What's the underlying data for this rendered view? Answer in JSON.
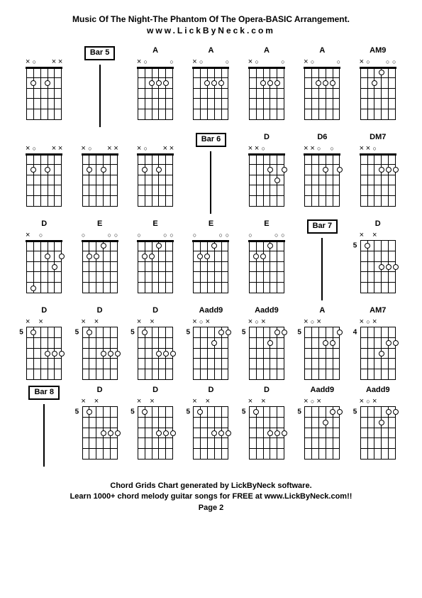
{
  "title": "Music Of The Night-The Phantom Of The Opera-BASIC Arrangement.",
  "website": "www.LickByNeck.com",
  "footer1": "Chord Grids Chart generated by LickByNeck software.",
  "footer2": "Learn 1000+ chord melody guitar songs for FREE at www.LickByNeck.com!!",
  "page": "Page 2",
  "diagram": {
    "width": 50,
    "height": 75,
    "num_strings": 6,
    "num_frets": 5,
    "dot_color": "#ffffff",
    "dot_border": "#000000",
    "line_color": "#000000"
  },
  "cells": [
    {
      "type": "chord",
      "label": "",
      "markers": [
        "x",
        "o",
        "",
        "",
        "x",
        "x"
      ],
      "dots": [
        [
          2,
          2
        ],
        [
          4,
          2
        ]
      ],
      "nut": true
    },
    {
      "type": "bar",
      "label": "Bar 5"
    },
    {
      "type": "chord",
      "label": "A",
      "markers": [
        "x",
        "o",
        "",
        "",
        "",
        "o"
      ],
      "dots": [
        [
          3,
          2
        ],
        [
          4,
          2
        ],
        [
          5,
          2
        ]
      ],
      "nut": true
    },
    {
      "type": "chord",
      "label": "A",
      "markers": [
        "x",
        "o",
        "",
        "",
        "",
        "o"
      ],
      "dots": [
        [
          3,
          2
        ],
        [
          4,
          2
        ],
        [
          5,
          2
        ]
      ],
      "nut": true
    },
    {
      "type": "chord",
      "label": "A",
      "markers": [
        "x",
        "o",
        "",
        "",
        "",
        "o"
      ],
      "dots": [
        [
          3,
          2
        ],
        [
          4,
          2
        ],
        [
          5,
          2
        ]
      ],
      "nut": true
    },
    {
      "type": "chord",
      "label": "A",
      "markers": [
        "x",
        "o",
        "",
        "",
        "",
        "o"
      ],
      "dots": [
        [
          3,
          2
        ],
        [
          4,
          2
        ],
        [
          5,
          2
        ]
      ],
      "nut": true
    },
    {
      "type": "chord",
      "label": "AM9",
      "markers": [
        "x",
        "o",
        "",
        "",
        "o",
        "o"
      ],
      "dots": [
        [
          3,
          2
        ],
        [
          4,
          1
        ]
      ],
      "nut": true
    },
    {
      "type": "chord",
      "label": "",
      "markers": [
        "x",
        "o",
        "",
        "",
        "x",
        "x"
      ],
      "dots": [
        [
          2,
          2
        ],
        [
          4,
          2
        ]
      ],
      "nut": true
    },
    {
      "type": "chord",
      "label": "",
      "markers": [
        "x",
        "o",
        "",
        "",
        "x",
        "x"
      ],
      "dots": [
        [
          2,
          2
        ],
        [
          4,
          2
        ]
      ],
      "nut": true
    },
    {
      "type": "chord",
      "label": "",
      "markers": [
        "x",
        "o",
        "",
        "",
        "x",
        "x"
      ],
      "dots": [
        [
          2,
          2
        ],
        [
          4,
          2
        ]
      ],
      "nut": true
    },
    {
      "type": "bar",
      "label": "Bar 6"
    },
    {
      "type": "chord",
      "label": "D",
      "markers": [
        "x",
        "x",
        "o",
        "",
        "",
        ""
      ],
      "dots": [
        [
          4,
          2
        ],
        [
          5,
          3
        ],
        [
          6,
          2
        ]
      ],
      "nut": true
    },
    {
      "type": "chord",
      "label": "D6",
      "markers": [
        "x",
        "x",
        "o",
        "",
        "o",
        ""
      ],
      "dots": [
        [
          4,
          2
        ],
        [
          6,
          2
        ]
      ],
      "nut": true
    },
    {
      "type": "chord",
      "label": "DM7",
      "markers": [
        "x",
        "x",
        "o",
        "",
        "",
        ""
      ],
      "dots": [
        [
          4,
          2
        ],
        [
          5,
          2
        ],
        [
          6,
          2
        ]
      ],
      "nut": true
    },
    {
      "type": "chord",
      "label": "D",
      "markers": [
        "x",
        "",
        "o",
        "",
        "",
        ""
      ],
      "dots": [
        [
          2,
          5
        ],
        [
          4,
          2
        ],
        [
          5,
          3
        ],
        [
          6,
          2
        ]
      ],
      "nut": true
    },
    {
      "type": "chord",
      "label": "E",
      "markers": [
        "o",
        "",
        "",
        "",
        "o",
        "o"
      ],
      "dots": [
        [
          2,
          2
        ],
        [
          3,
          2
        ],
        [
          4,
          1
        ]
      ],
      "nut": true
    },
    {
      "type": "chord",
      "label": "E",
      "markers": [
        "o",
        "",
        "",
        "",
        "o",
        "o"
      ],
      "dots": [
        [
          2,
          2
        ],
        [
          3,
          2
        ],
        [
          4,
          1
        ]
      ],
      "nut": true
    },
    {
      "type": "chord",
      "label": "E",
      "markers": [
        "o",
        "",
        "",
        "",
        "o",
        "o"
      ],
      "dots": [
        [
          2,
          2
        ],
        [
          3,
          2
        ],
        [
          4,
          1
        ]
      ],
      "nut": true
    },
    {
      "type": "chord",
      "label": "E",
      "markers": [
        "o",
        "",
        "",
        "",
        "o",
        "o"
      ],
      "dots": [
        [
          2,
          2
        ],
        [
          3,
          2
        ],
        [
          4,
          1
        ]
      ],
      "nut": true
    },
    {
      "type": "bar",
      "label": "Bar 7"
    },
    {
      "type": "chord",
      "label": "D",
      "markers": [
        "x",
        "",
        "x",
        "",
        "",
        ""
      ],
      "dots": [
        [
          2,
          1
        ],
        [
          4,
          3
        ],
        [
          5,
          3
        ],
        [
          6,
          3
        ]
      ],
      "nut": false,
      "fretNum": 5
    },
    {
      "type": "chord",
      "label": "D",
      "markers": [
        "x",
        "",
        "x",
        "",
        "",
        ""
      ],
      "dots": [
        [
          2,
          1
        ],
        [
          4,
          3
        ],
        [
          5,
          3
        ],
        [
          6,
          3
        ]
      ],
      "nut": false,
      "fretNum": 5
    },
    {
      "type": "chord",
      "label": "D",
      "markers": [
        "x",
        "",
        "x",
        "",
        "",
        ""
      ],
      "dots": [
        [
          2,
          1
        ],
        [
          4,
          3
        ],
        [
          5,
          3
        ],
        [
          6,
          3
        ]
      ],
      "nut": false,
      "fretNum": 5
    },
    {
      "type": "chord",
      "label": "D",
      "markers": [
        "x",
        "",
        "x",
        "",
        "",
        ""
      ],
      "dots": [
        [
          2,
          1
        ],
        [
          4,
          3
        ],
        [
          5,
          3
        ],
        [
          6,
          3
        ]
      ],
      "nut": false,
      "fretNum": 5
    },
    {
      "type": "chord",
      "label": "Aadd9",
      "markers": [
        "x",
        "o",
        "x",
        "",
        "",
        ""
      ],
      "dots": [
        [
          4,
          2
        ],
        [
          5,
          1
        ],
        [
          6,
          1
        ]
      ],
      "nut": false,
      "fretNum": 5
    },
    {
      "type": "chord",
      "label": "Aadd9",
      "markers": [
        "x",
        "o",
        "x",
        "",
        "",
        ""
      ],
      "dots": [
        [
          4,
          2
        ],
        [
          5,
          1
        ],
        [
          6,
          1
        ]
      ],
      "nut": false,
      "fretNum": 5
    },
    {
      "type": "chord",
      "label": "A",
      "markers": [
        "x",
        "o",
        "x",
        "",
        "",
        ""
      ],
      "dots": [
        [
          4,
          2
        ],
        [
          5,
          2
        ],
        [
          6,
          1
        ]
      ],
      "nut": false,
      "fretNum": 5
    },
    {
      "type": "chord",
      "label": "AM7",
      "markers": [
        "x",
        "o",
        "x",
        "",
        "",
        ""
      ],
      "dots": [
        [
          4,
          3
        ],
        [
          5,
          2
        ],
        [
          6,
          2
        ]
      ],
      "nut": false,
      "fretNum": 4
    },
    {
      "type": "bar",
      "label": "Bar 8"
    },
    {
      "type": "chord",
      "label": "D",
      "markers": [
        "x",
        "",
        "x",
        "",
        "",
        ""
      ],
      "dots": [
        [
          2,
          1
        ],
        [
          4,
          3
        ],
        [
          5,
          3
        ],
        [
          6,
          3
        ]
      ],
      "nut": false,
      "fretNum": 5
    },
    {
      "type": "chord",
      "label": "D",
      "markers": [
        "x",
        "",
        "x",
        "",
        "",
        ""
      ],
      "dots": [
        [
          2,
          1
        ],
        [
          4,
          3
        ],
        [
          5,
          3
        ],
        [
          6,
          3
        ]
      ],
      "nut": false,
      "fretNum": 5
    },
    {
      "type": "chord",
      "label": "D",
      "markers": [
        "x",
        "",
        "x",
        "",
        "",
        ""
      ],
      "dots": [
        [
          2,
          1
        ],
        [
          4,
          3
        ],
        [
          5,
          3
        ],
        [
          6,
          3
        ]
      ],
      "nut": false,
      "fretNum": 5
    },
    {
      "type": "chord",
      "label": "D",
      "markers": [
        "x",
        "",
        "x",
        "",
        "",
        ""
      ],
      "dots": [
        [
          2,
          1
        ],
        [
          4,
          3
        ],
        [
          5,
          3
        ],
        [
          6,
          3
        ]
      ],
      "nut": false,
      "fretNum": 5
    },
    {
      "type": "chord",
      "label": "Aadd9",
      "markers": [
        "x",
        "o",
        "x",
        "",
        "",
        ""
      ],
      "dots": [
        [
          4,
          2
        ],
        [
          5,
          1
        ],
        [
          6,
          1
        ]
      ],
      "nut": false,
      "fretNum": 5
    },
    {
      "type": "chord",
      "label": "Aadd9",
      "markers": [
        "x",
        "o",
        "x",
        "",
        "",
        ""
      ],
      "dots": [
        [
          4,
          2
        ],
        [
          5,
          1
        ],
        [
          6,
          1
        ]
      ],
      "nut": false,
      "fretNum": 5
    }
  ]
}
